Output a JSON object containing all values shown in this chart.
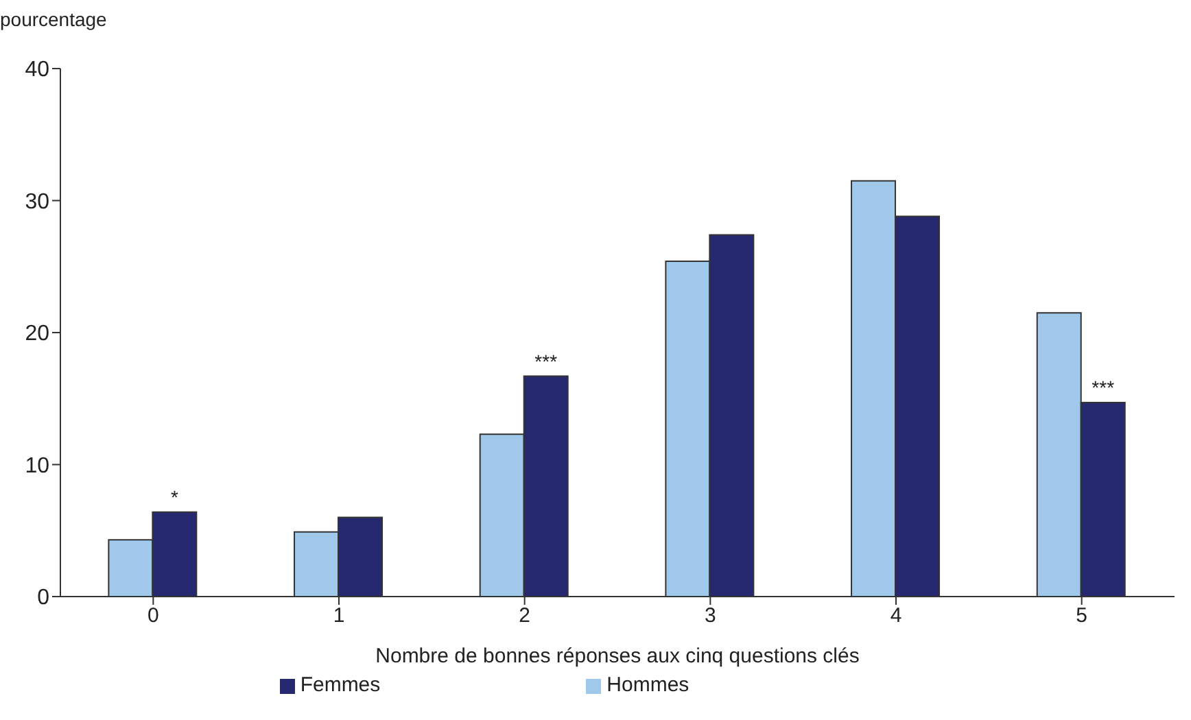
{
  "chart_data": {
    "type": "bar",
    "ylabel": "pourcentage",
    "xlabel": "Nombre de bonnes réponses aux cinq questions clés",
    "categories": [
      "0",
      "1",
      "2",
      "3",
      "4",
      "5"
    ],
    "series": [
      {
        "name": "Hommes",
        "color": "#9fc8ea",
        "values": [
          4.3,
          4.9,
          12.3,
          25.4,
          31.5,
          21.5
        ]
      },
      {
        "name": "Femmes",
        "color": "#272970",
        "values": [
          6.4,
          6.0,
          16.7,
          27.4,
          28.8,
          14.7
        ]
      }
    ],
    "ylim": [
      0,
      40
    ],
    "yticks": [
      0,
      10,
      20,
      30,
      40
    ],
    "grid": false,
    "legend": "bottom",
    "annotations": [
      {
        "text": "*",
        "x": "0",
        "y": 6.4
      },
      {
        "text": "***",
        "x": "2",
        "y": 16.7
      },
      {
        "text": "***",
        "x": "5",
        "y": 14.7
      }
    ]
  }
}
